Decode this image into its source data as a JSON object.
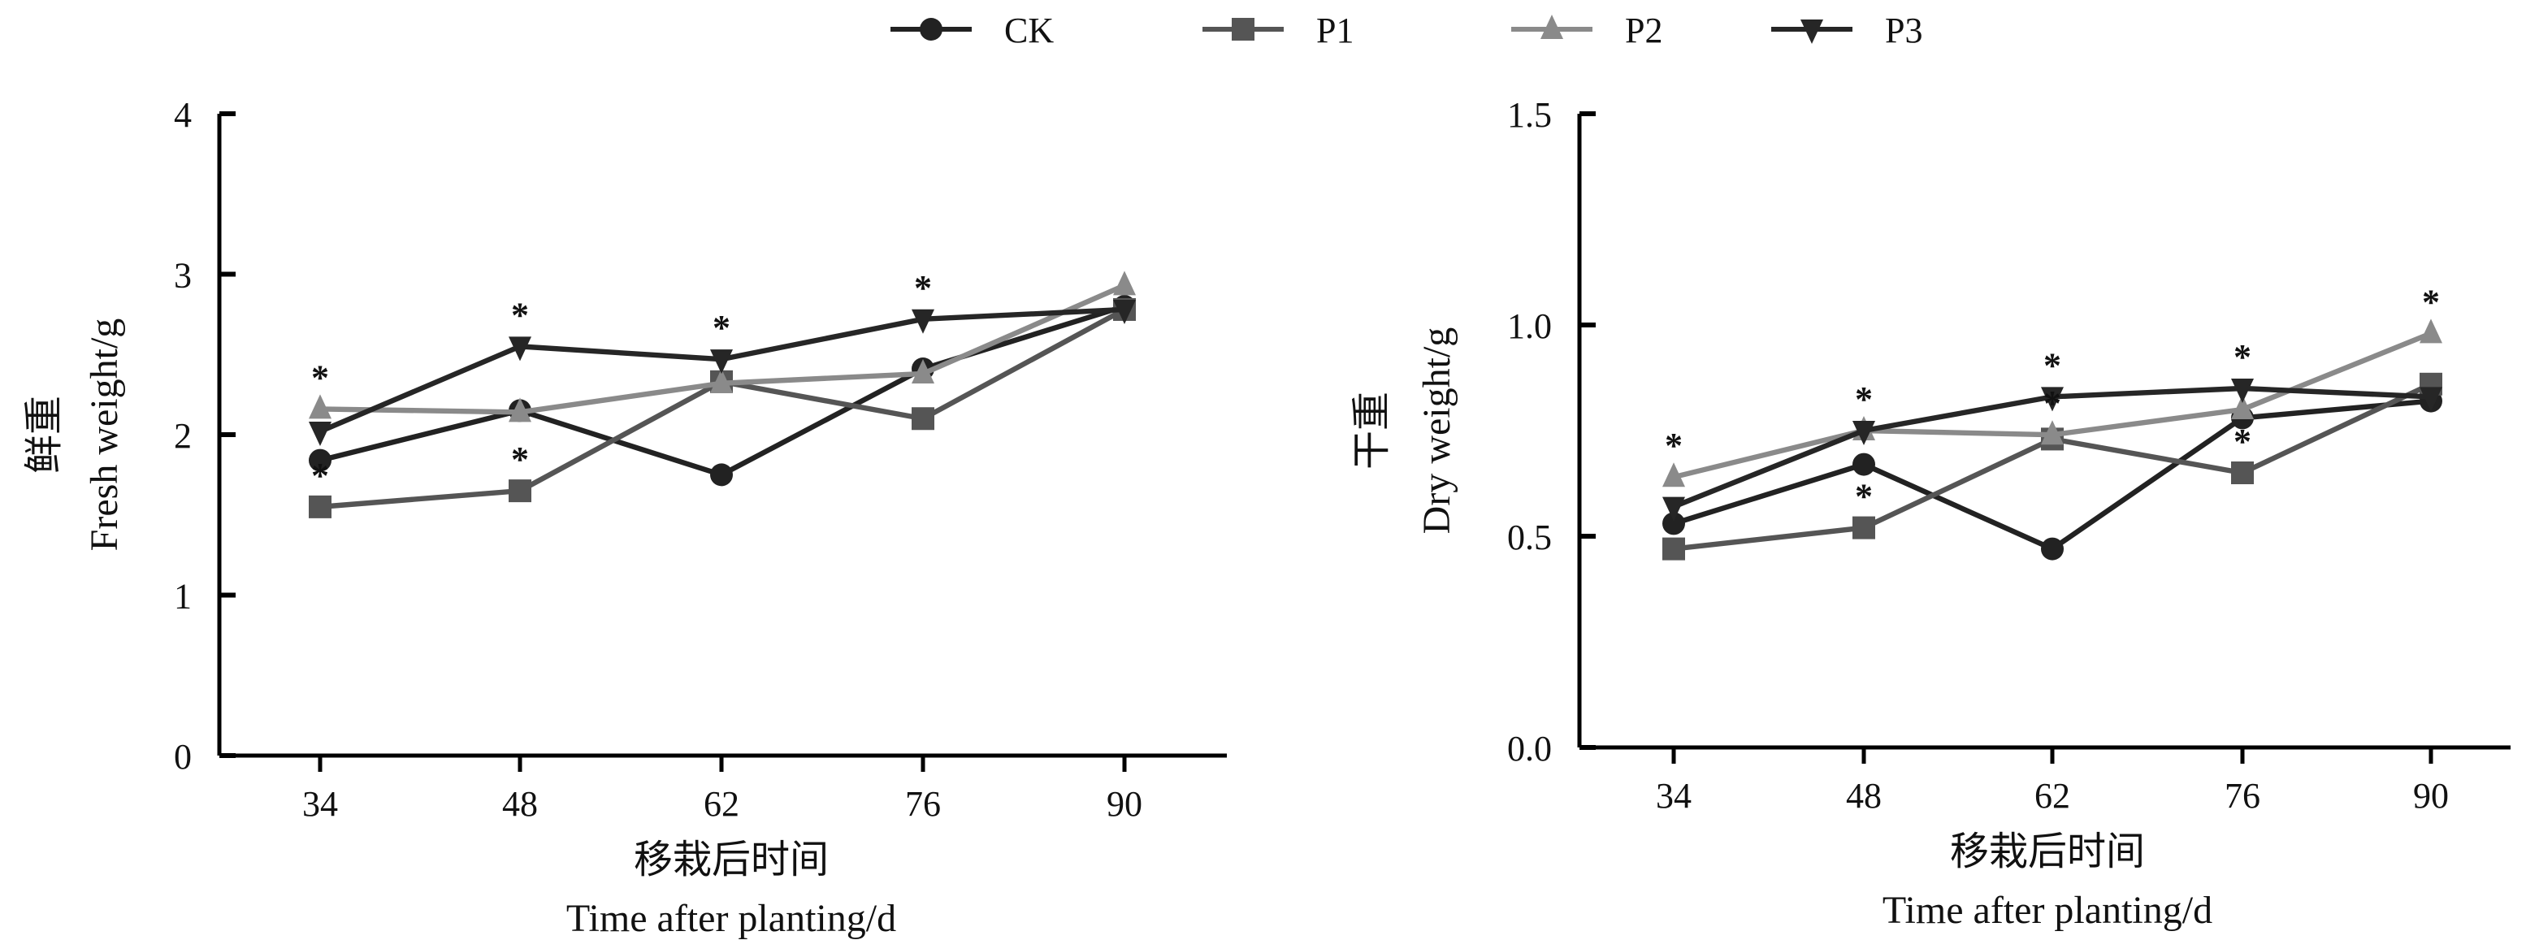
{
  "legend": [
    {
      "name": "CK",
      "marker": "circle",
      "color": "#222222"
    },
    {
      "name": "P1",
      "marker": "square",
      "color": "#555555"
    },
    {
      "name": "P2",
      "marker": "triangle-up",
      "color": "#8a8a8a"
    },
    {
      "name": "P3",
      "marker": "triangle-down",
      "color": "#262626"
    }
  ],
  "chart_data": [
    {
      "type": "line",
      "title": "",
      "ylabel_cn": "鲜重",
      "ylabel": "Fresh weight/g",
      "xlabel_cn": "移栽后时间",
      "xlabel": "Time after planting/d",
      "x": [
        "34",
        "48",
        "62",
        "76",
        "90"
      ],
      "ylim": [
        0,
        4
      ],
      "yticks": [
        "0",
        "1",
        "2",
        "3",
        "4"
      ],
      "ytick_values": [
        0,
        1,
        2,
        3,
        4
      ],
      "series": [
        {
          "name": "CK",
          "values": [
            1.84,
            2.15,
            1.75,
            2.41,
            2.8
          ]
        },
        {
          "name": "P1",
          "values": [
            1.55,
            1.65,
            2.33,
            2.1,
            2.78
          ]
        },
        {
          "name": "P2",
          "values": [
            2.16,
            2.14,
            2.32,
            2.38,
            2.93
          ]
        },
        {
          "name": "P3",
          "values": [
            2.02,
            2.55,
            2.47,
            2.72,
            2.78
          ]
        }
      ],
      "significance": [
        {
          "x": "34",
          "series": "P2",
          "label": "*"
        },
        {
          "x": "34",
          "series": "P1",
          "label": "*"
        },
        {
          "x": "48",
          "series": "P3",
          "label": "*"
        },
        {
          "x": "48",
          "series": "P1",
          "label": "*"
        },
        {
          "x": "62",
          "series": "P3",
          "label": "*"
        },
        {
          "x": "76",
          "series": "P3",
          "label": "*"
        }
      ]
    },
    {
      "type": "line",
      "title": "",
      "ylabel_cn": "干重",
      "ylabel": "Dry weight/g",
      "xlabel_cn": "移栽后时间",
      "xlabel": "Time after planting/d",
      "x": [
        "34",
        "48",
        "62",
        "76",
        "90"
      ],
      "ylim": [
        0,
        1.5
      ],
      "yticks": [
        "0.0",
        "0.5",
        "1.0",
        "1.5"
      ],
      "ytick_values": [
        0,
        0.5,
        1.0,
        1.5
      ],
      "series": [
        {
          "name": "CK",
          "values": [
            0.53,
            0.67,
            0.47,
            0.78,
            0.82
          ]
        },
        {
          "name": "P1",
          "values": [
            0.47,
            0.52,
            0.73,
            0.65,
            0.86
          ]
        },
        {
          "name": "P2",
          "values": [
            0.64,
            0.75,
            0.74,
            0.8,
            0.98
          ]
        },
        {
          "name": "P3",
          "values": [
            0.57,
            0.75,
            0.83,
            0.85,
            0.83
          ]
        }
      ],
      "significance": [
        {
          "x": "34",
          "series": "P2",
          "label": "*"
        },
        {
          "x": "48",
          "series": "P3",
          "label": "*"
        },
        {
          "x": "48",
          "series": "P1",
          "label": "*"
        },
        {
          "x": "62",
          "series": "P3",
          "label": "*"
        },
        {
          "x": "62",
          "series": "P2",
          "label": "*"
        },
        {
          "x": "76",
          "series": "P3",
          "label": "*"
        },
        {
          "x": "76",
          "series": "P1",
          "label": "*"
        },
        {
          "x": "90",
          "series": "P2",
          "label": "*"
        }
      ]
    }
  ]
}
